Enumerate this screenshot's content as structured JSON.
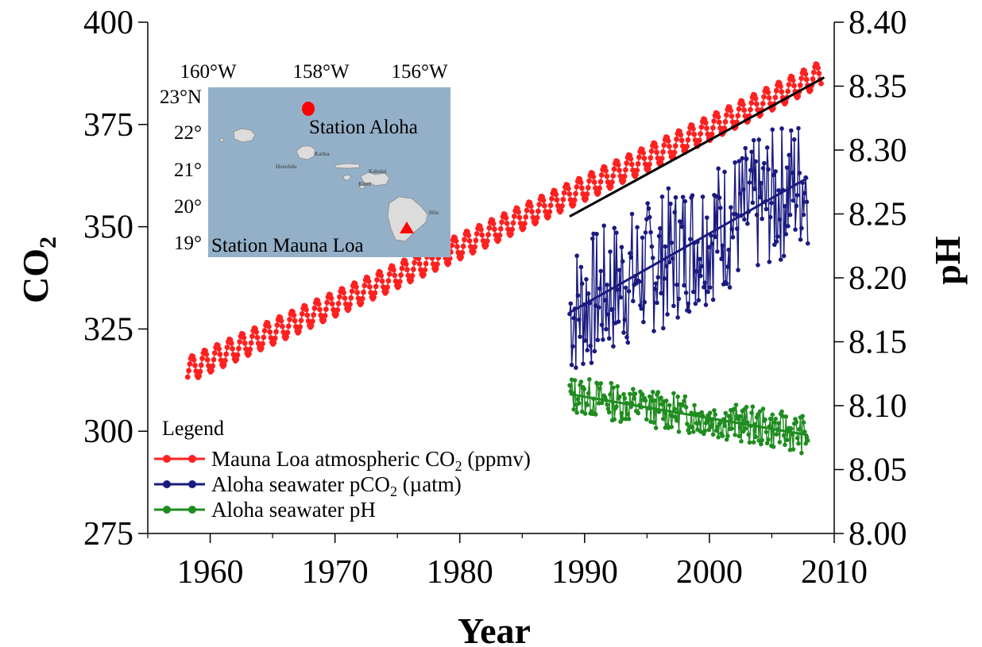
{
  "chart_data": {
    "type": "line",
    "xlabel": "Year",
    "ylabel": "CO₂",
    "ylabel_base": "CO",
    "ylabel_sub": "2",
    "y2label": "pH",
    "xlim": [
      1955,
      2010
    ],
    "ylim": [
      275,
      400
    ],
    "y2lim": [
      8.0,
      8.4
    ],
    "x_ticks": [
      1960,
      1970,
      1980,
      1990,
      2000,
      2010
    ],
    "y_ticks": [
      275,
      300,
      325,
      350,
      375,
      400
    ],
    "y2_ticks": [
      "8.00",
      "8.05",
      "8.10",
      "8.15",
      "8.20",
      "8.25",
      "8.30",
      "8.35",
      "8.40"
    ],
    "grid": false,
    "legend": {
      "title": "Legend",
      "placement": "bottom-left",
      "entries": [
        {
          "base": "Mauna Loa atmospheric CO",
          "sub": "2",
          "tail": " (ppmv)",
          "color": "#ff2020"
        },
        {
          "base": "Aloha seawater pCO",
          "sub": "2",
          "tail": " (µatm)",
          "color": "#1a1a80"
        },
        {
          "base": "Aloha seawater pH",
          "sub": "",
          "tail": "",
          "color": "#1f8c1f"
        }
      ]
    },
    "series": [
      {
        "name": "Mauna Loa atmospheric CO₂ (ppmv)",
        "axis": "left",
        "color": "#ff2020",
        "x_start": 1958.2,
        "x_end": 2009.0,
        "trend_start": 315.0,
        "trend_end": 387.5,
        "curvature": 4.0,
        "seasonal_amplitude": 3.0
      },
      {
        "name": "Aloha seawater pCO₂ (µatm)",
        "axis": "left",
        "color": "#1a1a80",
        "x_start": 1988.8,
        "x_end": 2007.9,
        "samples_per_year": 12,
        "y_range": [
          293,
          377
        ],
        "trend": {
          "x": [
            1988.8,
            2007.9
          ],
          "y": [
            329,
            362
          ]
        }
      },
      {
        "name": "Aloha seawater pH",
        "axis": "right",
        "color": "#1f8c1f",
        "x_start": 1988.8,
        "x_end": 2007.9,
        "samples_per_year": 12,
        "y_range": [
          8.06,
          8.13
        ],
        "trend": {
          "x": [
            1988.8,
            2007.9
          ],
          "y": [
            8.109,
            8.077
          ]
        }
      }
    ],
    "co2_trend": {
      "x": [
        1988.8,
        2009.2
      ],
      "y": [
        352.5,
        386.5
      ],
      "color": "#000000"
    }
  },
  "inset_map": {
    "lon_labels": [
      "160°W",
      "158°W",
      "156°W"
    ],
    "lat_labels": [
      "23°N",
      "22°",
      "21°",
      "20°",
      "19°"
    ],
    "station_aloha": "Station Aloha",
    "station_mauna_loa": "Station Mauna Loa",
    "place_labels": [
      "Kailua",
      "Honolulu",
      "Kahului",
      "Kihei",
      "Hilo"
    ],
    "sea_color": "#94b0c8",
    "aloha_marker_color": "#ff0000",
    "mauna_loa_marker_color": "#ff0000"
  }
}
